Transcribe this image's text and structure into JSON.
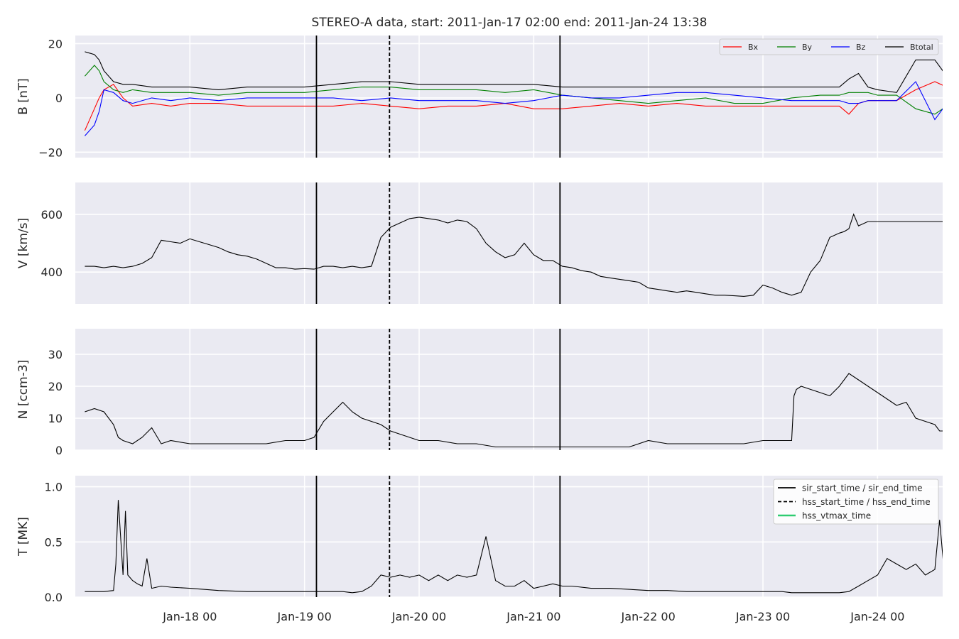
{
  "title": "STEREO-A data, start: 2011-Jan-17 02:00  end: 2011-Jan-24 13:38",
  "x_ticks": [
    "Jan-18 00",
    "Jan-19 00",
    "Jan-20 00",
    "Jan-21 00",
    "Jan-22 00",
    "Jan-23 00",
    "Jan-24 00"
  ],
  "colors": {
    "background": "#eaeaf2",
    "grid": "#ffffff",
    "Bx": "#ff0000",
    "By": "#008000",
    "Bz": "#0000ff",
    "Btotal": "#000000",
    "hss_vtmax": "#2ecc71"
  },
  "chart_data": [
    {
      "type": "line",
      "ylabel": "B [nT]",
      "ylim": [
        -22,
        23
      ],
      "yticks": [
        "20",
        "0",
        "−20"
      ],
      "grid": true,
      "legend_position": "top-right",
      "x_unit": "hours since 2011-Jan-17 00:00",
      "series": [
        {
          "name": "Bx",
          "x": [
            2,
            4,
            5,
            6,
            8,
            10,
            12,
            16,
            20,
            24,
            30,
            36,
            42,
            48,
            54,
            60,
            66,
            72,
            78,
            84,
            90,
            96,
            102,
            108,
            114,
            120,
            126,
            132,
            138,
            144,
            150,
            156,
            160,
            162,
            164,
            166,
            168,
            172,
            176,
            180,
            182.5
          ],
          "y": [
            -12,
            -4,
            0,
            3,
            5,
            0,
            -3,
            -2,
            -3,
            -2,
            -2,
            -3,
            -3,
            -3,
            -3,
            -2,
            -3,
            -4,
            -3,
            -3,
            -2,
            -4,
            -4,
            -3,
            -2,
            -3,
            -2,
            -3,
            -3,
            -3,
            -3,
            -3,
            -3,
            -6,
            -2,
            -1,
            -1,
            -1,
            3,
            6,
            4
          ]
        },
        {
          "name": "By",
          "x": [
            2,
            4,
            5,
            6,
            8,
            10,
            12,
            16,
            20,
            24,
            30,
            36,
            42,
            48,
            54,
            60,
            66,
            72,
            78,
            84,
            90,
            96,
            102,
            108,
            114,
            120,
            126,
            132,
            138,
            144,
            150,
            156,
            160,
            162,
            164,
            166,
            168,
            172,
            176,
            180,
            182.5
          ],
          "y": [
            8,
            12,
            10,
            6,
            3,
            2,
            3,
            2,
            2,
            2,
            1,
            2,
            2,
            2,
            3,
            4,
            4,
            3,
            3,
            3,
            2,
            3,
            1,
            0,
            -1,
            -2,
            -1,
            0,
            -2,
            -2,
            0,
            1,
            1,
            2,
            2,
            2,
            1,
            1,
            -4,
            -6,
            -3
          ]
        },
        {
          "name": "Bz",
          "x": [
            2,
            4,
            5,
            6,
            8,
            10,
            12,
            16,
            20,
            24,
            30,
            36,
            42,
            48,
            54,
            60,
            66,
            72,
            78,
            84,
            90,
            96,
            102,
            108,
            114,
            120,
            126,
            132,
            138,
            144,
            150,
            156,
            160,
            162,
            164,
            166,
            168,
            172,
            176,
            180,
            182.5
          ],
          "y": [
            -14,
            -10,
            -5,
            3,
            2,
            -1,
            -2,
            0,
            -1,
            0,
            -1,
            0,
            0,
            0,
            0,
            -1,
            0,
            -1,
            -1,
            -1,
            -2,
            -1,
            1,
            0,
            0,
            1,
            2,
            2,
            1,
            0,
            -1,
            -1,
            -1,
            -2,
            -2,
            -1,
            -1,
            -1,
            6,
            -8,
            -2
          ]
        },
        {
          "name": "Btotal",
          "x": [
            2,
            4,
            5,
            6,
            8,
            10,
            12,
            16,
            20,
            24,
            30,
            36,
            42,
            48,
            54,
            60,
            66,
            72,
            78,
            84,
            90,
            96,
            102,
            108,
            114,
            120,
            126,
            132,
            138,
            144,
            150,
            156,
            160,
            162,
            164,
            166,
            168,
            172,
            176,
            180,
            182.5
          ],
          "y": [
            17,
            16,
            14,
            10,
            6,
            5,
            5,
            4,
            4,
            4,
            3,
            4,
            4,
            4,
            5,
            6,
            6,
            5,
            5,
            5,
            5,
            5,
            4,
            4,
            4,
            4,
            4,
            4,
            4,
            4,
            4,
            4,
            4,
            7,
            9,
            4,
            3,
            2,
            14,
            14,
            8
          ]
        }
      ]
    },
    {
      "type": "line",
      "ylabel": "V [km/s]",
      "ylim": [
        290,
        710
      ],
      "yticks": [
        "600",
        "400"
      ],
      "grid": true,
      "x_unit": "hours since 2011-Jan-17 00:00",
      "series": [
        {
          "name": "",
          "x": [
            2,
            4,
            6,
            8,
            10,
            12,
            14,
            16,
            17,
            18,
            20,
            22,
            24,
            26,
            28,
            30,
            32,
            34,
            36,
            38,
            40,
            42,
            44,
            46,
            48,
            50,
            52,
            54,
            56,
            58,
            60,
            62,
            64,
            66,
            68,
            70,
            72,
            74,
            76,
            78,
            80,
            82,
            84,
            86,
            88,
            90,
            92,
            94,
            96,
            98,
            100,
            102,
            104,
            106,
            108,
            110,
            112,
            114,
            116,
            118,
            120,
            122,
            124,
            126,
            128,
            130,
            132,
            134,
            136,
            138,
            140,
            142,
            144,
            146,
            148,
            150,
            152,
            154,
            156,
            158,
            160,
            161,
            162,
            163,
            164,
            166,
            168,
            170,
            172,
            174,
            176,
            178,
            180,
            181,
            182,
            182.5
          ],
          "y": [
            420,
            420,
            415,
            420,
            415,
            420,
            430,
            450,
            480,
            510,
            505,
            500,
            515,
            505,
            495,
            485,
            470,
            460,
            455,
            445,
            430,
            415,
            415,
            410,
            412,
            410,
            420,
            420,
            415,
            420,
            415,
            420,
            520,
            555,
            570,
            585,
            590,
            585,
            580,
            570,
            580,
            575,
            550,
            500,
            470,
            450,
            460,
            500,
            460,
            440,
            440,
            420,
            415,
            405,
            400,
            385,
            380,
            375,
            370,
            365,
            345,
            340,
            335,
            330,
            335,
            330,
            325,
            320,
            320,
            318,
            316,
            320,
            355,
            345,
            330,
            320,
            330,
            400,
            440,
            520,
            535,
            540,
            550,
            600,
            560,
            575,
            575,
            575,
            575,
            575,
            575,
            575,
            575,
            575,
            575,
            575
          ]
        }
      ]
    },
    {
      "type": "line",
      "ylabel": "N [ccm-3]",
      "ylim": [
        0,
        38
      ],
      "yticks": [
        "30",
        "20",
        "10",
        "0"
      ],
      "grid": true,
      "x_unit": "hours since 2011-Jan-17 00:00",
      "series": [
        {
          "name": "",
          "x": [
            2,
            4,
            6,
            8,
            9,
            10,
            12,
            14,
            16,
            18,
            20,
            24,
            30,
            36,
            40,
            44,
            48,
            50,
            52,
            54,
            56,
            58,
            60,
            62,
            64,
            66,
            68,
            70,
            72,
            76,
            80,
            84,
            88,
            92,
            96,
            100,
            104,
            108,
            112,
            116,
            120,
            124,
            128,
            132,
            136,
            140,
            144,
            148,
            150,
            150.5,
            151,
            152,
            154,
            156,
            158,
            160,
            162,
            164,
            166,
            168,
            170,
            172,
            174,
            176,
            178,
            180,
            181,
            182,
            182.5
          ],
          "y": [
            12,
            13,
            12,
            8,
            4,
            3,
            2,
            4,
            7,
            2,
            3,
            2,
            2,
            2,
            2,
            3,
            3,
            4,
            9,
            12,
            15,
            12,
            10,
            9,
            8,
            6,
            5,
            4,
            3,
            3,
            2,
            2,
            1,
            1,
            1,
            1,
            1,
            1,
            1,
            1,
            3,
            2,
            2,
            2,
            2,
            2,
            3,
            3,
            3,
            17,
            19,
            20,
            19,
            18,
            17,
            20,
            24,
            22,
            20,
            18,
            16,
            14,
            15,
            10,
            9,
            8,
            6,
            6,
            5
          ]
        }
      ]
    },
    {
      "type": "line",
      "ylabel": "T [MK]",
      "ylim": [
        0,
        1.1
      ],
      "yticks": [
        "1.0",
        "0.5",
        "0.0"
      ],
      "grid": true,
      "legend_position": "top-right",
      "x_unit": "hours since 2011-Jan-17 00:00",
      "legend": [
        "sir_start_time / sir_end_time",
        "hss_start_time / hss_end_time",
        "hss_vtmax_time"
      ],
      "series": [
        {
          "name": "",
          "x": [
            2,
            4,
            6,
            8,
            8.5,
            9,
            10,
            10.5,
            11,
            12,
            13,
            14,
            15,
            16,
            18,
            20,
            24,
            30,
            36,
            42,
            48,
            52,
            54,
            56,
            58,
            60,
            62,
            64,
            66,
            68,
            70,
            72,
            74,
            76,
            78,
            80,
            82,
            84,
            86,
            88,
            90,
            92,
            94,
            96,
            98,
            100,
            102,
            104,
            108,
            112,
            116,
            120,
            124,
            128,
            132,
            136,
            140,
            144,
            148,
            150,
            152,
            156,
            160,
            162,
            164,
            166,
            168,
            170,
            172,
            174,
            176,
            178,
            180,
            181,
            182,
            182.5
          ],
          "y": [
            0.05,
            0.05,
            0.05,
            0.06,
            0.3,
            0.88,
            0.2,
            0.78,
            0.2,
            0.15,
            0.12,
            0.1,
            0.35,
            0.08,
            0.1,
            0.09,
            0.08,
            0.06,
            0.05,
            0.05,
            0.05,
            0.05,
            0.05,
            0.05,
            0.04,
            0.05,
            0.1,
            0.2,
            0.18,
            0.2,
            0.18,
            0.2,
            0.15,
            0.2,
            0.15,
            0.2,
            0.18,
            0.2,
            0.55,
            0.15,
            0.1,
            0.1,
            0.15,
            0.08,
            0.1,
            0.12,
            0.1,
            0.1,
            0.08,
            0.08,
            0.07,
            0.06,
            0.06,
            0.05,
            0.05,
            0.05,
            0.05,
            0.05,
            0.05,
            0.04,
            0.04,
            0.04,
            0.04,
            0.05,
            0.1,
            0.15,
            0.2,
            0.35,
            0.3,
            0.25,
            0.3,
            0.2,
            0.25,
            0.7,
            0.2,
            0.15
          ]
        }
      ]
    }
  ],
  "vertical_lines": [
    {
      "name": "sir_start_time",
      "x": 50.5,
      "style": "solid"
    },
    {
      "name": "hss_start_time",
      "x": 65.8,
      "style": "dashed"
    },
    {
      "name": "sir_end_time",
      "x": 101.5,
      "style": "solid"
    }
  ],
  "b_legend": [
    "Bx",
    "By",
    "Bz",
    "Btotal"
  ]
}
